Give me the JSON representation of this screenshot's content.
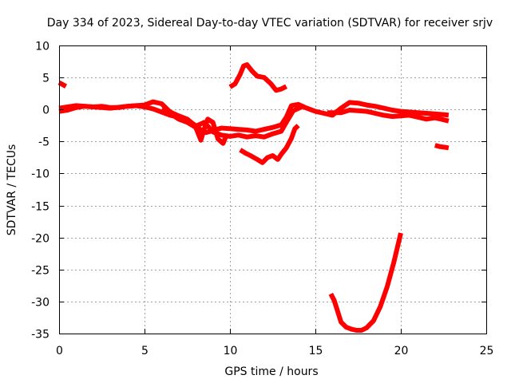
{
  "chart_data": {
    "type": "scatter",
    "title": "Day 334 of 2023, Sidereal Day-to-day VTEC variation (SDTVAR) for receiver srjv",
    "xlabel": "GPS time / hours",
    "ylabel": "SDTVAR / TECUs",
    "xlim": [
      0,
      25
    ],
    "ylim": [
      -35,
      10
    ],
    "x_ticks": [
      "0",
      "5",
      "10",
      "15",
      "20",
      "25"
    ],
    "y_ticks": [
      "10",
      "5",
      "0",
      "-5",
      "-10",
      "-15",
      "-20",
      "-25",
      "-30",
      "-35"
    ],
    "grid": true,
    "color": "#ff0000",
    "series": [
      {
        "name": "segment-1",
        "x": [
          0.0,
          0.4
        ],
        "y": [
          4.2,
          3.6
        ]
      },
      {
        "name": "segment-2",
        "x": [
          0.0,
          0.5,
          1.0,
          1.5,
          2.0,
          2.5,
          3.0,
          3.5,
          4.0,
          4.5,
          5.0,
          5.5,
          6.0,
          6.5,
          7.0,
          7.5,
          8.0,
          8.3,
          8.6,
          9.0,
          9.5,
          10.0,
          10.5,
          11.0,
          11.5,
          12.0,
          12.5,
          13.0,
          13.3,
          13.6,
          14.0,
          14.5,
          15.0,
          15.5,
          16.0,
          16.5,
          17.0,
          17.5,
          18.0,
          18.5,
          19.0,
          19.5,
          20.0,
          20.5,
          21.0,
          21.5,
          22.0,
          22.5,
          22.8
        ],
        "y": [
          -0.3,
          -0.1,
          0.3,
          0.5,
          0.4,
          0.5,
          0.3,
          0.3,
          0.5,
          0.6,
          0.4,
          0.1,
          -0.4,
          -0.9,
          -1.2,
          -1.7,
          -2.5,
          -3.2,
          -3.6,
          -3.3,
          -2.9,
          -3.0,
          -3.1,
          -3.2,
          -3.4,
          -3.1,
          -2.8,
          -2.4,
          -1.2,
          0.6,
          0.8,
          0.2,
          -0.3,
          -0.6,
          -0.9,
          0.2,
          1.1,
          1.0,
          0.7,
          0.5,
          0.2,
          -0.1,
          -0.3,
          -0.4,
          -0.5,
          -0.6,
          -0.7,
          -0.8,
          -0.9
        ]
      },
      {
        "name": "segment-3",
        "x": [
          0.0,
          1.0,
          2.0,
          3.0,
          4.0,
          5.0,
          5.5,
          6.0,
          6.5,
          7.0,
          7.5,
          8.0,
          8.5,
          9.0,
          9.5,
          10.0,
          10.5,
          11.0,
          11.5,
          12.0,
          12.5,
          13.0,
          13.3,
          13.7,
          14.2
        ],
        "y": [
          0.2,
          0.6,
          0.4,
          0.2,
          0.5,
          0.7,
          1.2,
          0.9,
          -0.4,
          -1.0,
          -1.5,
          -2.6,
          -2.0,
          -3.5,
          -4.0,
          -4.2,
          -4.0,
          -4.3,
          -4.1,
          -4.3,
          -3.8,
          -3.4,
          -2.0,
          -0.2,
          0.4
        ]
      },
      {
        "name": "segment-4",
        "x": [
          6.0,
          6.5,
          7.0,
          7.5,
          8.0,
          8.3,
          8.5,
          8.7,
          9.0,
          9.3,
          9.6,
          9.8
        ],
        "y": [
          0.0,
          -0.6,
          -1.5,
          -2.0,
          -2.8,
          -4.8,
          -3.0,
          -1.5,
          -2.0,
          -4.6,
          -5.3,
          -4.0
        ]
      },
      {
        "name": "segment-5",
        "x": [
          10.0,
          10.3,
          10.6,
          10.8,
          11.0,
          11.3,
          11.6,
          12.0,
          12.4,
          12.7,
          13.0,
          13.3
        ],
        "y": [
          3.5,
          4.0,
          5.5,
          6.8,
          7.0,
          6.0,
          5.2,
          5.0,
          4.0,
          3.0,
          3.2,
          3.6
        ]
      },
      {
        "name": "segment-6",
        "x": [
          10.6,
          10.9,
          11.2,
          11.6,
          11.9,
          12.2,
          12.5,
          12.8,
          13.0,
          13.3,
          13.6,
          13.8,
          14.0
        ],
        "y": [
          -6.3,
          -6.8,
          -7.2,
          -7.8,
          -8.3,
          -7.5,
          -7.2,
          -7.8,
          -7.0,
          -6.0,
          -4.5,
          -3.0,
          -2.5
        ]
      },
      {
        "name": "segment-7",
        "x": [
          15.7,
          16.5,
          17.0,
          17.5,
          18.0,
          18.5,
          19.0,
          19.5,
          20.0,
          20.5,
          21.0,
          21.5,
          22.0,
          22.5,
          22.8
        ],
        "y": [
          -0.5,
          -0.5,
          -0.1,
          -0.2,
          -0.3,
          -0.6,
          -0.9,
          -1.1,
          -1.0,
          -0.9,
          -1.2,
          -1.5,
          -1.3,
          -1.6,
          -1.8
        ]
      },
      {
        "name": "segment-8",
        "x": [
          22.0,
          22.3,
          22.6,
          22.8
        ],
        "y": [
          -5.6,
          -5.8,
          -5.9,
          -6.0
        ]
      },
      {
        "name": "segment-9",
        "x": [
          15.9,
          16.1,
          16.3,
          16.5,
          16.8,
          17.1,
          17.4,
          17.7,
          18.0,
          18.4,
          18.8,
          19.2,
          19.6,
          20.0
        ],
        "y": [
          -28.8,
          -29.8,
          -31.5,
          -33.2,
          -34.0,
          -34.3,
          -34.5,
          -34.5,
          -34.1,
          -33.0,
          -30.8,
          -27.7,
          -23.8,
          -19.3
        ]
      }
    ]
  }
}
